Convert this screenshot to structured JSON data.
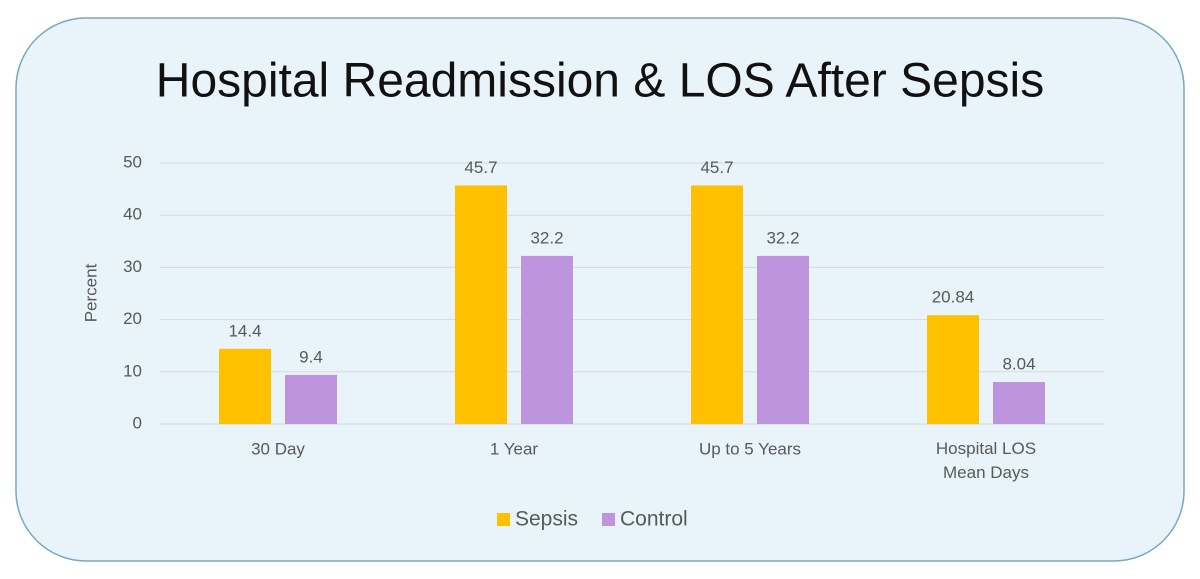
{
  "chart_data": {
    "type": "bar",
    "title": "Hospital Readmission & LOS After Sepsis",
    "y_label": "Percent",
    "categories": [
      "30 Day",
      "1 Year",
      "Up to 5 Years",
      "Hospital LOS\nMean Days"
    ],
    "series": [
      {
        "name": "Sepsis",
        "color": "#ffc000",
        "values": [
          14.4,
          45.7,
          45.7,
          20.84
        ]
      },
      {
        "name": "Control",
        "color": "#bf94de",
        "values": [
          9.4,
          32.2,
          32.2,
          8.04
        ]
      }
    ],
    "ylim": [
      0,
      50
    ],
    "yticks": [
      0,
      10,
      20,
      30,
      40,
      50
    ],
    "grid": true,
    "legend": "bottom"
  }
}
